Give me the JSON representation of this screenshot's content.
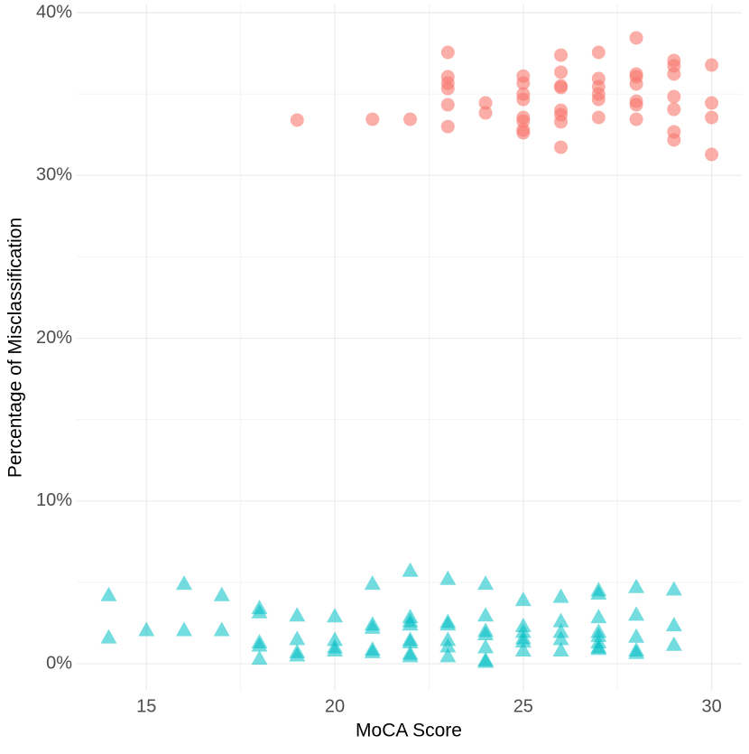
{
  "chart_data": {
    "type": "scatter",
    "xlabel": "MoCA Score",
    "ylabel": "Percentage of Misclassification",
    "xlim": [
      13.15,
      30.8
    ],
    "xticks": [
      15,
      20,
      25,
      30
    ],
    "ylim": [
      -1.66,
      40.5
    ],
    "yticks": [
      {
        "value": 0,
        "label": "0%"
      },
      {
        "value": 10,
        "label": "10%"
      },
      {
        "value": 20,
        "label": "20%"
      },
      {
        "value": 30,
        "label": "30%"
      },
      {
        "value": 40,
        "label": "40%"
      }
    ],
    "grid": true,
    "series": [
      {
        "marker": "circle",
        "color": "#F8766D",
        "x": [
          19,
          21,
          22,
          23,
          23,
          23,
          23,
          23,
          23,
          24,
          24,
          25,
          25,
          25,
          25,
          25,
          25,
          25,
          25,
          26,
          26,
          26,
          26,
          26,
          26,
          26,
          26,
          27,
          27,
          27,
          27,
          27,
          27,
          28,
          28,
          28,
          28,
          28,
          28,
          28,
          29,
          29,
          29,
          29,
          29,
          29,
          29,
          30,
          30,
          30,
          30
        ],
        "y": [
          33.4,
          33.45,
          33.45,
          37.56,
          36.06,
          35.67,
          35.34,
          34.34,
          33.0,
          34.45,
          33.84,
          36.1,
          35.67,
          35.0,
          34.67,
          33.56,
          33.34,
          32.79,
          32.62,
          37.39,
          36.34,
          35.5,
          35.4,
          34.0,
          33.73,
          33.29,
          31.73,
          37.56,
          35.95,
          35.45,
          35.0,
          34.67,
          33.56,
          38.45,
          36.23,
          36.06,
          35.62,
          34.56,
          34.34,
          33.45,
          37.06,
          36.73,
          36.23,
          34.84,
          34.06,
          32.68,
          32.18,
          36.78,
          34.45,
          33.56,
          31.29
        ]
      },
      {
        "marker": "triangle",
        "color": "#00BFC4",
        "x": [
          14,
          14,
          15,
          16,
          16,
          17,
          17,
          18,
          18,
          18,
          18,
          18,
          19,
          19,
          19,
          19,
          20,
          20,
          20,
          20,
          21,
          21,
          21,
          21,
          21,
          22,
          22,
          22,
          22,
          22,
          22,
          22,
          22,
          23,
          23,
          23,
          23,
          23,
          23,
          24,
          24,
          24,
          24,
          24,
          24,
          24,
          25,
          25,
          25,
          25,
          25,
          25,
          26,
          26,
          26,
          26,
          26,
          27,
          27,
          27,
          27,
          27,
          27,
          27,
          27,
          28,
          28,
          28,
          28,
          28,
          29,
          29,
          29
        ],
        "y": [
          4.2,
          1.6,
          2.05,
          4.9,
          2.05,
          4.2,
          2.05,
          3.4,
          3.15,
          1.3,
          1.1,
          0.3,
          2.95,
          1.5,
          0.7,
          0.5,
          2.9,
          1.45,
          1.0,
          0.8,
          4.9,
          2.4,
          2.2,
          0.85,
          0.7,
          5.7,
          2.85,
          2.6,
          2.4,
          1.45,
          1.3,
          0.6,
          0.45,
          5.2,
          2.55,
          2.4,
          1.45,
          1.05,
          0.45,
          4.9,
          2.95,
          2.0,
          1.8,
          1.0,
          0.2,
          0.1,
          3.9,
          2.3,
          1.95,
          1.55,
          1.35,
          0.8,
          4.1,
          2.6,
          1.95,
          1.5,
          0.8,
          4.5,
          4.3,
          2.85,
          1.95,
          1.7,
          1.3,
          1.0,
          0.9,
          4.7,
          3.0,
          1.65,
          0.8,
          0.65,
          4.55,
          2.35,
          1.15
        ]
      }
    ]
  }
}
